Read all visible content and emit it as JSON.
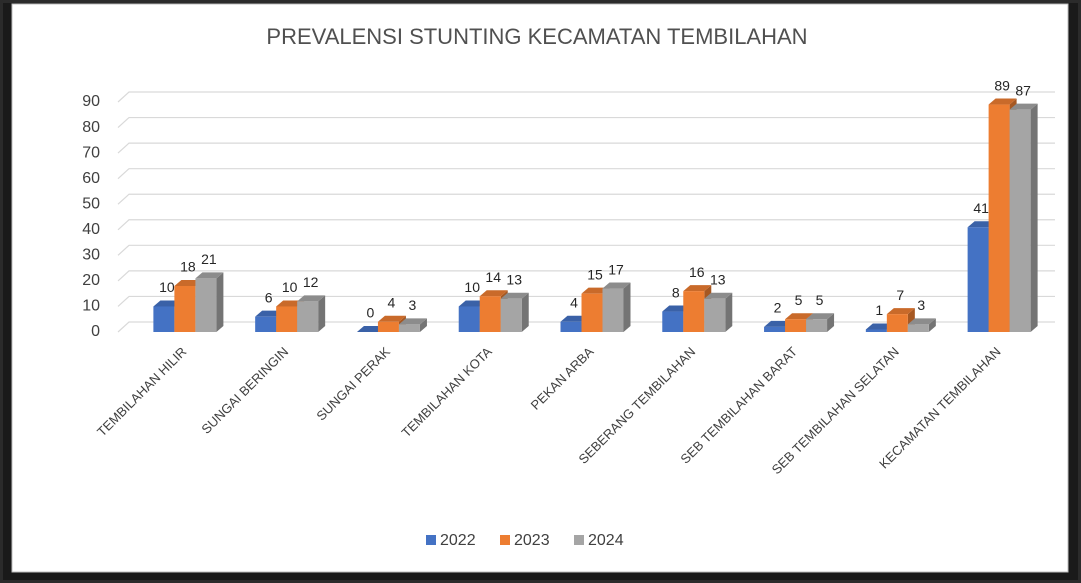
{
  "chart_data": {
    "type": "bar",
    "title": "PREVALENSI STUNTING KECAMATAN TEMBILAHAN",
    "categories": [
      "TEMBILAHAN HILIR",
      "SUNGAI BERINGIN",
      "SUNGAI PERAK",
      "TEMBILAHAN KOTA",
      "PEKAN ARBA",
      "SEBERANG TEMBILAHAN",
      "SEB TEMBILAHAN BARAT",
      "SEB TEMBILAHAN SELATAN",
      "KECAMATAN TEMBILAHAN"
    ],
    "series": [
      {
        "name": "2022",
        "color": "#4472c4",
        "values": [
          10,
          6,
          0,
          10,
          4,
          8,
          2,
          1,
          41
        ]
      },
      {
        "name": "2023",
        "color": "#ed7d31",
        "values": [
          18,
          10,
          4,
          14,
          15,
          16,
          5,
          7,
          89
        ]
      },
      {
        "name": "2024",
        "color": "#a5a5a5",
        "values": [
          21,
          12,
          3,
          13,
          17,
          13,
          5,
          3,
          87
        ]
      }
    ],
    "ylim": [
      0,
      90
    ],
    "yticks": [
      0,
      10,
      20,
      30,
      40,
      50,
      60,
      70,
      80,
      90
    ],
    "grid": true,
    "legend": "bottom"
  }
}
